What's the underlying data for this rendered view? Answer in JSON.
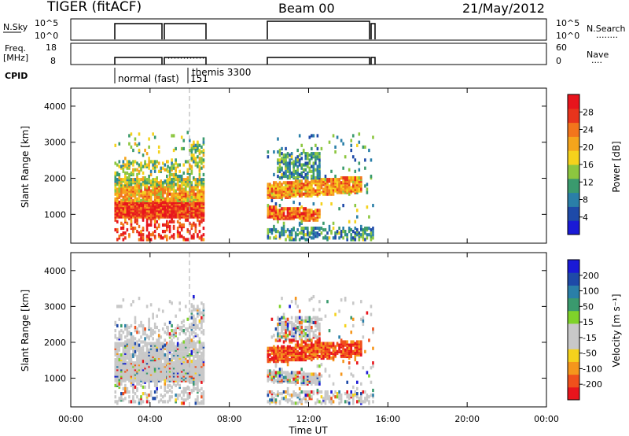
{
  "header": {
    "radar": "TIGER (fitACF)",
    "beam": "Beam 00",
    "date": "21/May/2012"
  },
  "strip_nsky": {
    "left_label": "N.Sky",
    "left_ticks": [
      "10^5",
      "10^0"
    ],
    "right_ticks": [
      "10^5",
      "10^0"
    ],
    "right_label": "N.Search",
    "right_dots": "........"
  },
  "strip_freq": {
    "left_label": "Freq.",
    "left_unit": "[MHz]",
    "left_ticks": [
      "18",
      "8"
    ],
    "right_ticks": [
      "60",
      "0"
    ],
    "right_label": "Nave",
    "right_dots": "...."
  },
  "cpid": {
    "label": "CPID",
    "mode1": "normal (fast)",
    "mode2": "themis 3300",
    "mode2_id": "151"
  },
  "colors": {
    "power": [
      "#1a1ad6",
      "#1e4aa8",
      "#2a7fa8",
      "#3a9a6e",
      "#8cc63f",
      "#f5d21c",
      "#f5a51c",
      "#f2751c",
      "#e8341c",
      "#e8141c"
    ],
    "velocity": [
      "#e8141c",
      "#f0501c",
      "#f5961c",
      "#f5d21c",
      "#c8c8c8",
      "#c8c8c8",
      "#7fd22a",
      "#3a9a6e",
      "#2a7fa8",
      "#1e4aa8",
      "#1a1ad6"
    ]
  },
  "chart_data": [
    {
      "type": "heatmap",
      "name": "power",
      "ylabel": "Slant Range [km]",
      "yticks": [
        "4000",
        "3000",
        "2000",
        "1000"
      ],
      "ylim": [
        200,
        4500
      ],
      "xlim": [
        0,
        24
      ],
      "colorbar_label": "Power [dB]",
      "colorbar_ticks": [
        "28",
        "24",
        "20",
        "16",
        "12",
        "8",
        "4"
      ],
      "data_intervals_ut": [
        [
          2.2,
          4.8
        ],
        [
          4.85,
          6.7
        ],
        [
          9.9,
          15.2
        ]
      ]
    },
    {
      "type": "heatmap",
      "name": "velocity",
      "ylabel": "Slant Range [km]",
      "yticks": [
        "4000",
        "3000",
        "2000",
        "1000"
      ],
      "ylim": [
        200,
        4500
      ],
      "xlim": [
        0,
        24
      ],
      "colorbar_label": "Velocity [m s⁻¹]",
      "colorbar_ticks": [
        "200",
        "100",
        "50",
        "15",
        "-15",
        "-50",
        "-100",
        "-200"
      ],
      "xlabel": "Time UT",
      "xticks": [
        "00:00",
        "04:00",
        "08:00",
        "12:00",
        "16:00",
        "20:00",
        "00:00"
      ]
    }
  ]
}
